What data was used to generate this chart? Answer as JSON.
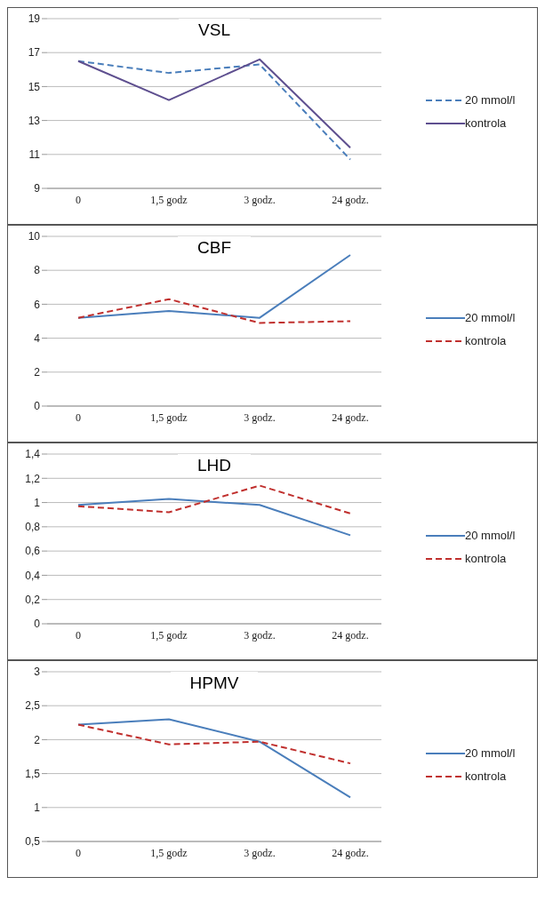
{
  "chart_data": [
    {
      "type": "line",
      "title": "VSL",
      "categories": [
        "0",
        "1,5 godz",
        "3 godz.",
        "24 godz."
      ],
      "ylim": [
        9,
        19
      ],
      "yticks": [
        9,
        11,
        13,
        15,
        17,
        19
      ],
      "grid": "y",
      "legend": "right",
      "marker": "none",
      "series": [
        {
          "name": "20 mmol/l",
          "color": "#4a7ebb",
          "line_style": "dashed",
          "values": [
            16.5,
            15.8,
            16.3,
            10.7
          ]
        },
        {
          "name": "kontrola",
          "color": "#5e4f8f",
          "line_style": "solid",
          "values": [
            16.5,
            14.2,
            16.6,
            11.4
          ]
        }
      ]
    },
    {
      "type": "line",
      "title": "CBF",
      "categories": [
        "0",
        "1,5 godz",
        "3 godz.",
        "24 godz."
      ],
      "ylim": [
        0,
        10
      ],
      "yticks": [
        0,
        2,
        4,
        6,
        8,
        10
      ],
      "grid": "y",
      "legend": "right",
      "marker": "none",
      "series": [
        {
          "name": "20 mmol/l",
          "color": "#4a7ebb",
          "line_style": "solid",
          "values": [
            5.2,
            5.6,
            5.2,
            8.9
          ]
        },
        {
          "name": "kontrola",
          "color": "#c0302e",
          "line_style": "dashed",
          "values": [
            5.2,
            6.3,
            4.9,
            5.0
          ]
        }
      ]
    },
    {
      "type": "line",
      "title": "LHD",
      "categories": [
        "0",
        "1,5 godz",
        "3 godz.",
        "24 godz."
      ],
      "ylim": [
        0,
        1.4
      ],
      "yticks": [
        0,
        {
          "value": 0.2,
          "label": "0,2"
        },
        {
          "value": 0.4,
          "label": "0,4"
        },
        {
          "value": 0.6,
          "label": "0,6"
        },
        {
          "value": 0.8,
          "label": "0,8"
        },
        1,
        {
          "value": 1.2,
          "label": "1,2"
        },
        {
          "value": 1.4,
          "label": "1,4"
        }
      ],
      "grid": "y",
      "legend": "right",
      "marker": "none",
      "series": [
        {
          "name": "20 mmol/l",
          "color": "#4a7ebb",
          "line_style": "solid",
          "values": [
            0.98,
            1.03,
            0.98,
            0.73
          ]
        },
        {
          "name": "kontrola",
          "color": "#c0302e",
          "line_style": "dashed",
          "values": [
            0.97,
            0.92,
            1.14,
            0.91
          ]
        }
      ]
    },
    {
      "type": "line",
      "title": "HPMV",
      "categories": [
        "0",
        "1,5 godz",
        "3 godz.",
        "24 godz."
      ],
      "ylim": [
        0.5,
        3
      ],
      "yticks": [
        {
          "value": 0.5,
          "label": "0,5"
        },
        1,
        {
          "value": 1.5,
          "label": "1,5"
        },
        2,
        {
          "value": 2.5,
          "label": "2,5"
        },
        3
      ],
      "grid": "y",
      "legend": "right",
      "marker": "none",
      "series": [
        {
          "name": "20 mmol/l",
          "color": "#4a7ebb",
          "line_style": "solid",
          "values": [
            2.22,
            2.3,
            1.97,
            1.15
          ]
        },
        {
          "name": "kontrola",
          "color": "#c0302e",
          "line_style": "dashed",
          "values": [
            2.22,
            1.93,
            1.97,
            1.65
          ]
        }
      ]
    }
  ]
}
